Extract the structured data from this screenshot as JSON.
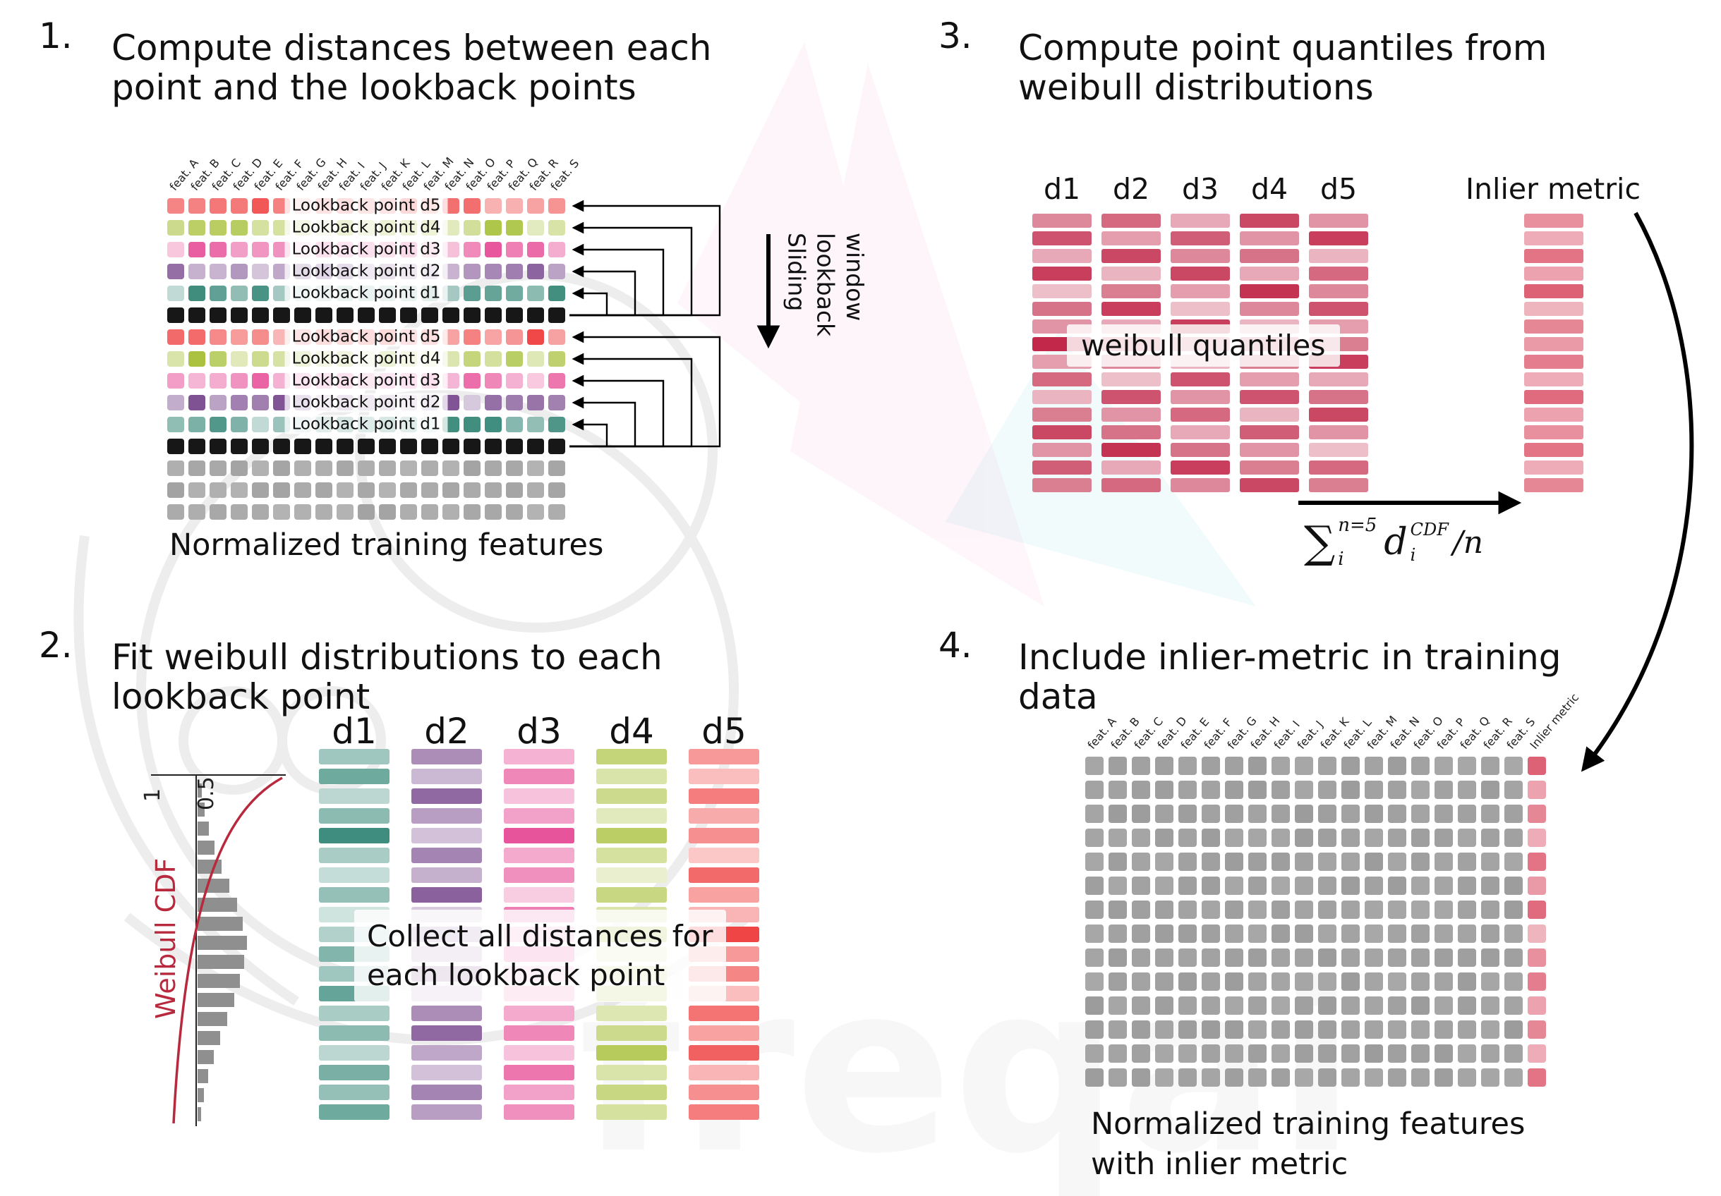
{
  "colors": {
    "d1": "#3f8d7e",
    "d2": "#7d4f92",
    "d3": "#e8549b",
    "d4": "#a9c23f",
    "d5": "#f04545",
    "quantile": "#c2284a",
    "inlier": "#d8465e",
    "cell_gray": "#a3a3a3",
    "cell_gray4": "#9c9c9c",
    "cell_black": "#171717",
    "cdf_red": "#b8293d",
    "arrow_black": "#000000"
  },
  "watermark": {
    "text": "freqai"
  },
  "panel1": {
    "number": "1.",
    "title_line1": "Compute distances between each",
    "title_line2": "point and the lookback points",
    "caption": "Normalized training features",
    "sliding_lines": [
      "Sliding",
      "lookback",
      "window"
    ],
    "feature_labels": [
      "feat. A",
      "feat. B",
      "feat. C",
      "feat. D",
      "feat. E",
      "feat. F",
      "feat. G",
      "feat. H",
      "feat. I",
      "feat. J",
      "feat. K",
      "feat. L",
      "feat. M",
      "feat. N",
      "feat. O",
      "feat. P",
      "feat. Q",
      "feat. R",
      "feat. S"
    ],
    "rows": [
      {
        "kind": "d5",
        "label": "Lookback point d5"
      },
      {
        "kind": "d4",
        "label": "Lookback point d4"
      },
      {
        "kind": "d3",
        "label": "Lookback point d3"
      },
      {
        "kind": "d2",
        "label": "Lookback point d2"
      },
      {
        "kind": "d1",
        "label": "Lookback point d1"
      },
      {
        "kind": "black",
        "label": null
      },
      {
        "kind": "d5",
        "label": "Lookback point d5"
      },
      {
        "kind": "d4",
        "label": "Lookback point d4"
      },
      {
        "kind": "d3",
        "label": "Lookback point d3"
      },
      {
        "kind": "d2",
        "label": "Lookback point d2"
      },
      {
        "kind": "d1",
        "label": "Lookback point d1"
      },
      {
        "kind": "black",
        "label": null
      },
      {
        "kind": "gray",
        "label": null
      },
      {
        "kind": "gray",
        "label": null
      },
      {
        "kind": "gray",
        "label": null
      }
    ]
  },
  "panel2": {
    "number": "2.",
    "title_line1": "Fit weibull distributions to each",
    "title_line2": "lookback point",
    "overlay_line1": "Collect all distances for",
    "overlay_line2": "each lookback point",
    "cdf_label": "Weibull CDF",
    "ticks": [
      "1",
      "0.5"
    ],
    "hist": [
      6,
      10,
      16,
      24,
      34,
      45,
      56,
      64,
      70,
      66,
      60,
      52,
      42,
      32,
      23,
      15,
      9,
      5
    ],
    "col_labels": [
      "d1",
      "d2",
      "d3",
      "d4",
      "d5"
    ],
    "columns": [
      {
        "id": "d1",
        "shades": [
          0.5,
          0.75,
          0.35,
          0.6,
          1.0,
          0.45,
          0.3,
          0.55,
          0.25,
          0.4,
          0.65,
          0.5,
          0.8,
          0.45,
          0.6,
          0.35,
          0.7,
          0.55,
          0.75
        ]
      },
      {
        "id": "d2",
        "shades": [
          0.65,
          0.4,
          0.85,
          0.55,
          0.35,
          0.7,
          0.45,
          0.9,
          0.3,
          0.6,
          0.5,
          0.75,
          0.4,
          0.65,
          0.85,
          0.5,
          0.35,
          0.7,
          0.55
        ]
      },
      {
        "id": "d3",
        "shades": [
          0.45,
          0.7,
          0.35,
          0.55,
          1.0,
          0.5,
          0.65,
          0.3,
          0.75,
          0.45,
          0.85,
          0.4,
          0.6,
          0.5,
          0.7,
          0.35,
          0.8,
          0.55,
          0.65
        ]
      },
      {
        "id": "d4",
        "shades": [
          0.7,
          0.45,
          0.6,
          0.35,
          0.8,
          0.5,
          0.25,
          0.65,
          0.45,
          0.9,
          0.35,
          0.55,
          0.75,
          0.4,
          0.6,
          0.85,
          0.45,
          0.65,
          0.5
        ]
      },
      {
        "id": "d5",
        "shades": [
          0.55,
          0.35,
          0.7,
          0.45,
          0.6,
          0.3,
          0.8,
          0.5,
          0.4,
          1.0,
          0.55,
          0.65,
          0.35,
          0.75,
          0.5,
          0.85,
          0.4,
          0.6,
          0.7
        ]
      }
    ]
  },
  "panel3": {
    "number": "3.",
    "title_line1": "Compute point quantiles from",
    "title_line2": "weibull distributions",
    "overlay": "weibull quantiles",
    "inlier_label": "Inlier metric",
    "col_labels": [
      "d1",
      "d2",
      "d3",
      "d4",
      "d5"
    ],
    "quantile_columns": [
      [
        0.55,
        0.8,
        0.4,
        0.9,
        0.3,
        0.65,
        0.5,
        1.0,
        0.45,
        0.7,
        0.35,
        0.6,
        0.85,
        0.5,
        0.75,
        0.6
      ],
      [
        0.7,
        0.45,
        0.85,
        0.35,
        0.6,
        0.9,
        0.4,
        0.75,
        0.55,
        0.3,
        0.8,
        0.5,
        0.65,
        0.95,
        0.4,
        0.7
      ],
      [
        0.4,
        0.75,
        0.55,
        0.85,
        0.45,
        0.3,
        0.9,
        0.6,
        0.35,
        0.8,
        0.5,
        0.7,
        0.4,
        0.65,
        0.9,
        0.55
      ],
      [
        0.85,
        0.5,
        0.65,
        0.4,
        0.95,
        0.55,
        0.35,
        0.7,
        0.6,
        0.45,
        0.8,
        0.35,
        0.75,
        0.5,
        0.6,
        0.85
      ],
      [
        0.5,
        0.9,
        0.35,
        0.7,
        0.55,
        0.8,
        0.45,
        0.6,
        0.9,
        0.4,
        0.65,
        0.85,
        0.5,
        0.3,
        0.7,
        0.6
      ]
    ],
    "inlier_shades": [
      0.6,
      0.45,
      0.75,
      0.5,
      0.85,
      0.4,
      0.65,
      0.55,
      0.7,
      0.45,
      0.8,
      0.5,
      0.6,
      0.75,
      0.45,
      0.65
    ],
    "formula": {
      "sum": "∑",
      "sum_sup": "n=5",
      "sum_sub": "i",
      "var": "d",
      "var_sup": "CDF",
      "var_sub": "i",
      "tail": "/n"
    }
  },
  "panel4": {
    "number": "4.",
    "title_line1": "Include inlier-metric in training",
    "title_line2": "data",
    "caption_line1": "Normalized training features",
    "caption_line2": "with inlier metric",
    "feature_labels": [
      "feat. A",
      "feat. B",
      "feat. C",
      "feat. D",
      "feat. E",
      "feat. F",
      "feat. G",
      "feat. H",
      "feat. I",
      "feat. J",
      "feat. K",
      "feat. L",
      "feat. M",
      "feat. N",
      "feat. O",
      "feat. P",
      "feat. Q",
      "feat. R",
      "feat. S",
      "Inlier metric"
    ],
    "n_rows": 14,
    "inlier_shades": [
      0.85,
      0.5,
      0.65,
      0.45,
      0.75,
      0.55,
      0.8,
      0.4,
      0.6,
      0.7,
      0.5,
      0.65,
      0.45,
      0.75
    ]
  }
}
